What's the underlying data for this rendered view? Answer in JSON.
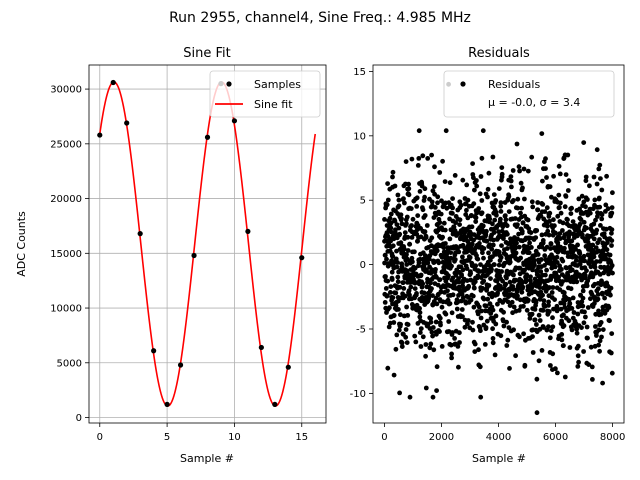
{
  "figure_title": "Run 2955, channel4, Sine Freq.: 4.985 MHz",
  "chart_data": [
    {
      "type": "scatter",
      "title": "Sine Fit",
      "xlabel": "Sample #",
      "ylabel": "ADC Counts",
      "xlim": [
        -0.8,
        16.8
      ],
      "ylim": [
        -500,
        32200
      ],
      "xticks": [
        0,
        5,
        10,
        15
      ],
      "yticks": [
        0,
        5000,
        10000,
        15000,
        20000,
        25000,
        30000
      ],
      "grid": true,
      "legend": {
        "position": "top-right",
        "entries": [
          "Samples",
          "Sine fit"
        ]
      },
      "series": [
        {
          "name": "Samples",
          "kind": "scatter",
          "color": "#000000",
          "x": [
            0,
            1,
            2,
            3,
            4,
            5,
            6,
            7,
            8,
            9,
            10,
            11,
            12,
            13,
            14,
            15
          ],
          "y": [
            25800,
            30600,
            26900,
            16800,
            6100,
            1200,
            4800,
            14800,
            25600,
            30500,
            27100,
            17000,
            6400,
            1200,
            4600,
            14600
          ]
        },
        {
          "name": "Sine fit",
          "kind": "line",
          "color": "#ff0000",
          "function": {
            "offset": 15850,
            "amplitude": 14800,
            "period_samples": 8.0,
            "peak_at_sample": 1.05
          },
          "x_range": [
            0,
            16
          ]
        }
      ]
    },
    {
      "type": "scatter",
      "title": "Residuals",
      "xlabel": "Sample #",
      "ylabel": "",
      "xlim": [
        -400,
        8400
      ],
      "ylim": [
        -12.3,
        15.5
      ],
      "xticks": [
        0,
        2000,
        4000,
        6000,
        8000
      ],
      "yticks": [
        -10,
        -5,
        0,
        5,
        10,
        15
      ],
      "grid": false,
      "legend": {
        "position": "top-right",
        "entries": [
          "Residuals",
          "μ = -0.0, σ = 3.4"
        ]
      },
      "series": [
        {
          "name": "Residuals",
          "color": "#000000",
          "n_points": 8000,
          "x_range": [
            0,
            8000
          ],
          "mean": 0.0,
          "std": 3.4,
          "min": -11.5,
          "max": 14.0
        }
      ]
    }
  ]
}
